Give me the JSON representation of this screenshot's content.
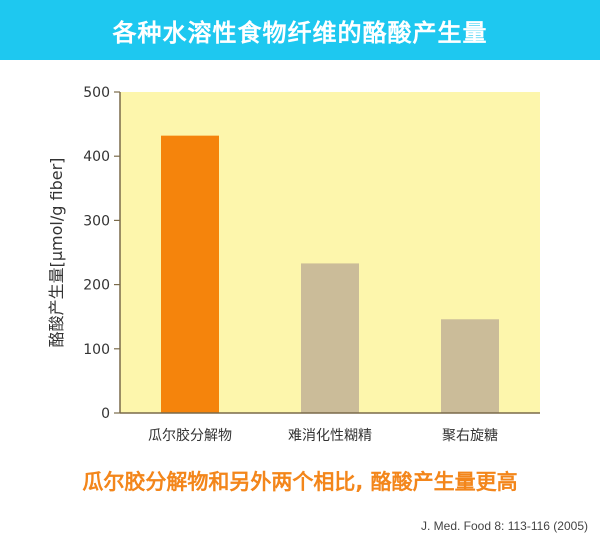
{
  "header": {
    "title": "各种水溶性食物纤维的酪酸产生量"
  },
  "chart_data": {
    "type": "bar",
    "categories": [
      "瓜尔胶分解物",
      "难消化性糊精",
      "聚右旋糖"
    ],
    "values": [
      432,
      233,
      146
    ],
    "bar_colors": [
      "#f5840c",
      "#cbbc99",
      "#cbbc99"
    ],
    "plot_background": "#fdf6ac",
    "ylabel": "酪酸产生量[μmol/g fiber]",
    "xlabel": "",
    "ylim": [
      0,
      500
    ],
    "yticks": [
      0,
      100,
      200,
      300,
      400,
      500
    ],
    "grid": false,
    "legend": "none"
  },
  "conclusion": "瓜尔胶分解物和另外两个相比, 酪酸产生量更高",
  "citation": "J. Med. Food  8: 113-116 (2005)"
}
